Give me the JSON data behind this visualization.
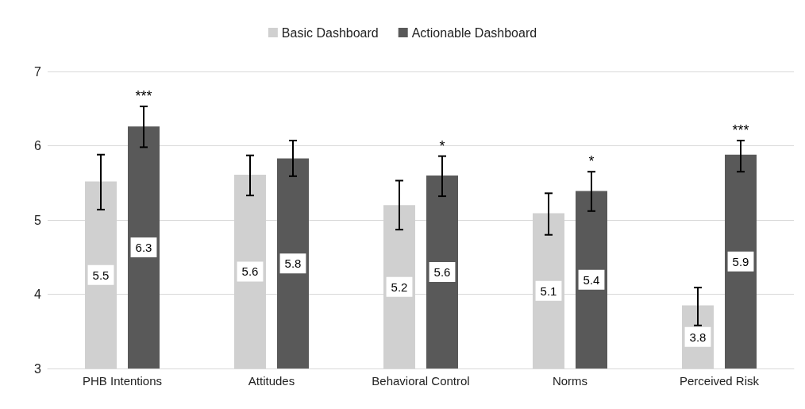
{
  "chart_data": {
    "type": "bar",
    "categories": [
      "PHB Intentions",
      "Attitudes",
      "Behavioral Control",
      "Norms",
      "Perceived Risk"
    ],
    "series": [
      {
        "name": "Basic Dashboard",
        "color": "#d0d0d0",
        "values": [
          5.52,
          5.61,
          5.2,
          5.09,
          3.85
        ],
        "value_labels": [
          "5.5",
          "5.6",
          "5.2",
          "5.1",
          "3.8"
        ],
        "errors": [
          [
            5.14,
            5.88
          ],
          [
            5.33,
            5.87
          ],
          [
            4.87,
            5.53
          ],
          [
            4.8,
            5.36
          ],
          [
            3.58,
            4.09
          ]
        ]
      },
      {
        "name": "Actionable Dashboard",
        "color": "#595959",
        "values": [
          6.26,
          5.83,
          5.6,
          5.39,
          5.88
        ],
        "value_labels": [
          "6.3",
          "5.8",
          "5.6",
          "5.4",
          "5.9"
        ],
        "errors": [
          [
            5.98,
            6.53
          ],
          [
            5.59,
            6.07
          ],
          [
            5.32,
            5.86
          ],
          [
            5.12,
            5.65
          ],
          [
            5.65,
            6.07
          ]
        ]
      }
    ],
    "annotations": [
      "***",
      "*",
      "*",
      "***"
    ],
    "ylim": [
      3,
      7
    ],
    "yticks": [
      3,
      4,
      5,
      6,
      7
    ],
    "grid": "y",
    "legend": "top"
  }
}
